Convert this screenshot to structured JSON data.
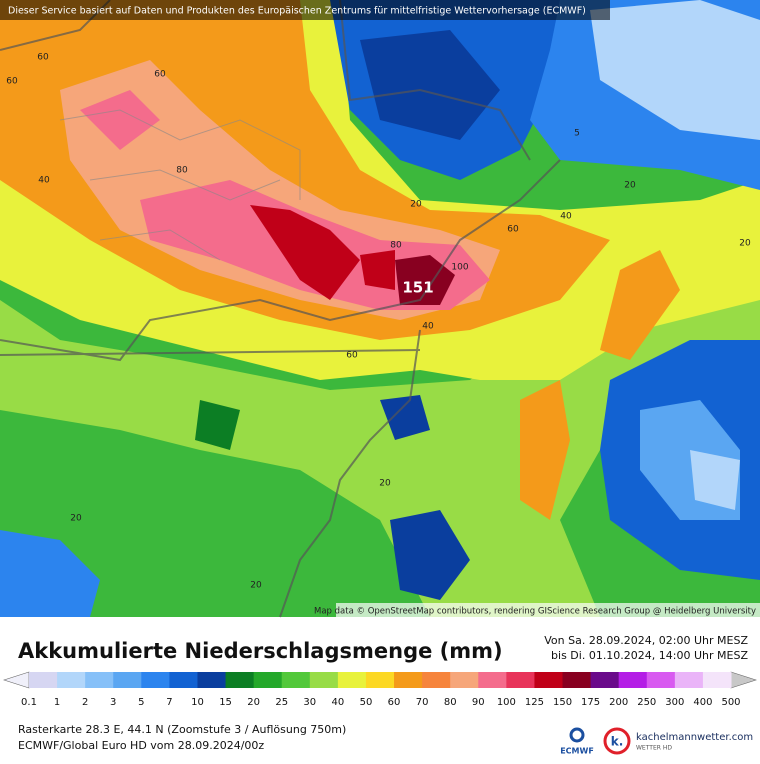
{
  "header": {
    "notice": "Dieser Service basiert auf Daten und Produkten des Europäischen Zentrums für mittelfristige Wettervorhersage (ECMWF)",
    "attribution": "Map data © OpenStreetMap contributors, rendering GIScience Research Group @ Heidelberg University"
  },
  "map": {
    "max_label": "151",
    "contour_labels": [
      "60",
      "60",
      "60",
      "40",
      "80",
      "20",
      "80",
      "100",
      "60",
      "40",
      "20",
      "5",
      "20",
      "60",
      "40",
      "20",
      "20",
      "20"
    ]
  },
  "footer": {
    "title": "Akkumulierte Niederschlagsmenge (mm)",
    "period_from": "Von Sa. 28.09.2024, 02:00 Uhr MESZ",
    "period_to": "bis Di. 01.10.2024, 14:00 Uhr MESZ",
    "location": "Rasterkarte 28.3 E, 44.1 N (Zoomstufe 3 / Auflösung 750m)",
    "model": "ECMWF/Global Euro HD vom 28.09.2024/00z",
    "logo_ecmwf": "ECMWF",
    "logo_site": "kachelmannwetter.com",
    "logo_sub": "WETTER HD"
  },
  "legend": {
    "labels": [
      "0.1",
      "1",
      "2",
      "3",
      "5",
      "7",
      "10",
      "15",
      "20",
      "25",
      "30",
      "40",
      "50",
      "60",
      "70",
      "80",
      "90",
      "100",
      "125",
      "150",
      "175",
      "200",
      "250",
      "300",
      "400",
      "500"
    ],
    "colors": [
      "#d6d6f2",
      "#b2d6fa",
      "#86c0f8",
      "#5aa6f2",
      "#2c84ee",
      "#1262d2",
      "#0a3e9e",
      "#0c7e24",
      "#24a82a",
      "#52c83a",
      "#98dc46",
      "#e8f23c",
      "#fcd824",
      "#f49a1a",
      "#f6843c",
      "#f6a67a",
      "#f46c8c",
      "#e8345a",
      "#c00018",
      "#880020",
      "#6a0a8a",
      "#b41ee6",
      "#d85af0",
      "#eab4f8",
      "#f4e4fa"
    ]
  }
}
